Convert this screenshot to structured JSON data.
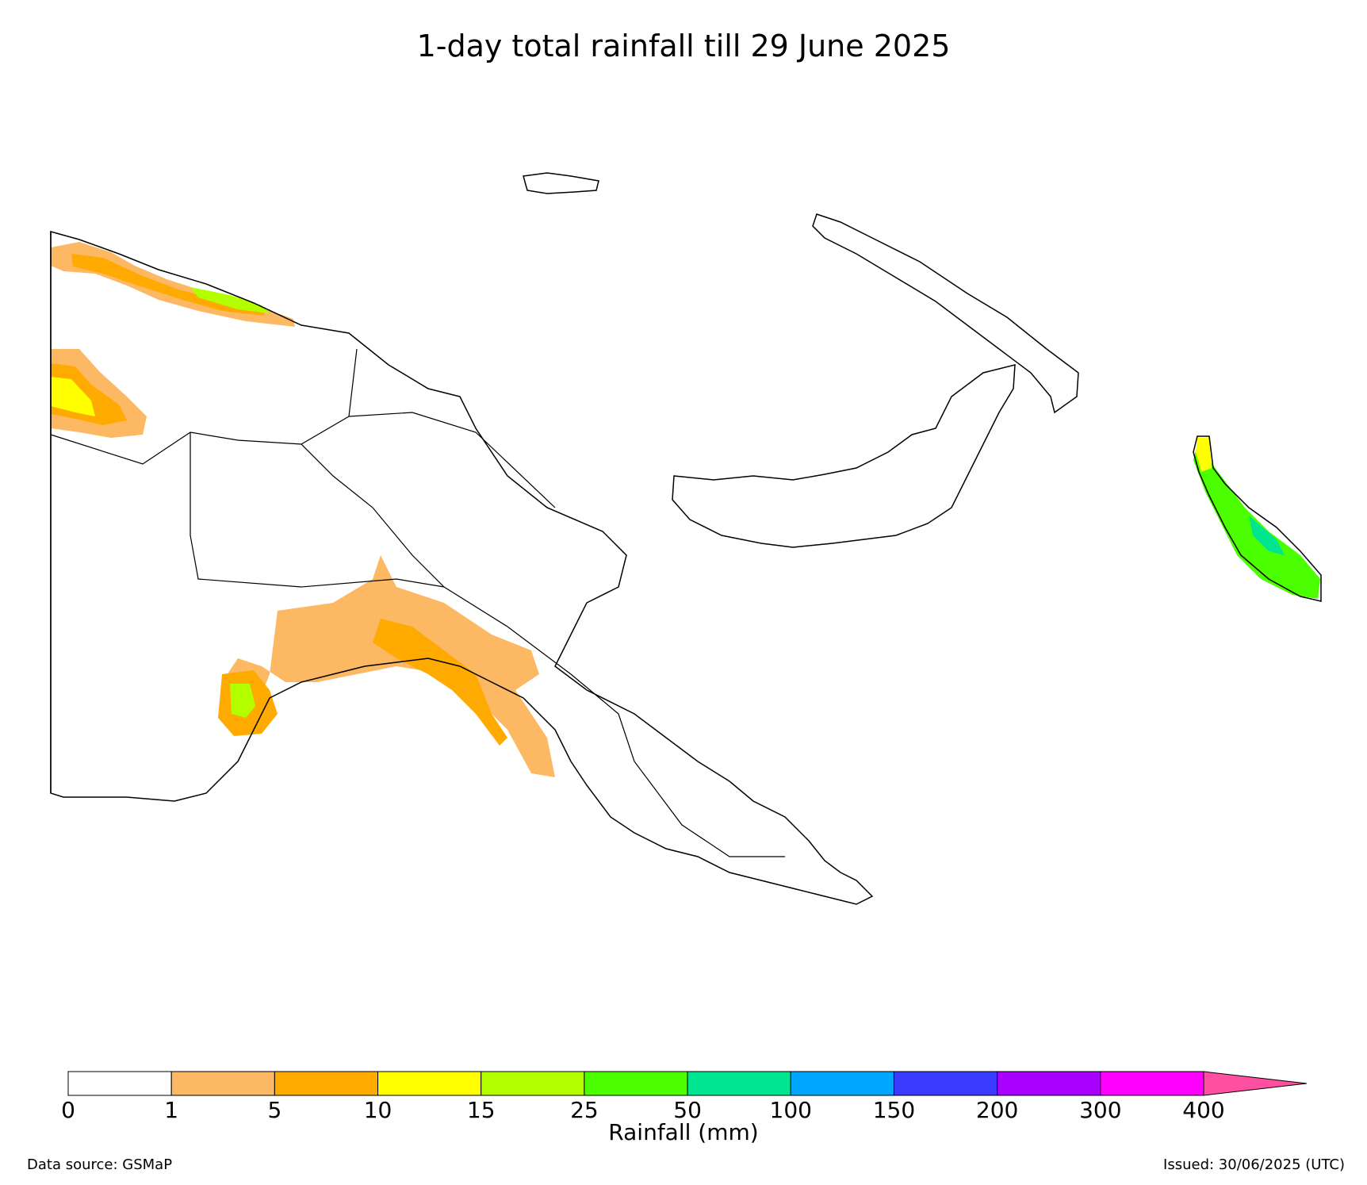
{
  "title": "1-day total rainfall till 29 June 2025",
  "colorbar": {
    "unit_label": "Rainfall (mm)",
    "ticks": [
      "0",
      "1",
      "5",
      "10",
      "15",
      "25",
      "50",
      "100",
      "150",
      "200",
      "300",
      "400"
    ],
    "colors": [
      "#ffffff",
      "#fdb863",
      "#ffaa00",
      "#ffff00",
      "#b3ff00",
      "#4cff00",
      "#00e58f",
      "#00a6ff",
      "#3b3bff",
      "#aa00ff",
      "#ff00ff"
    ],
    "extend_color": "#ff4fa0"
  },
  "footer": {
    "source": "Data source: GSMaP",
    "issued": "Issued: 30/06/2025 (UTC)"
  }
}
